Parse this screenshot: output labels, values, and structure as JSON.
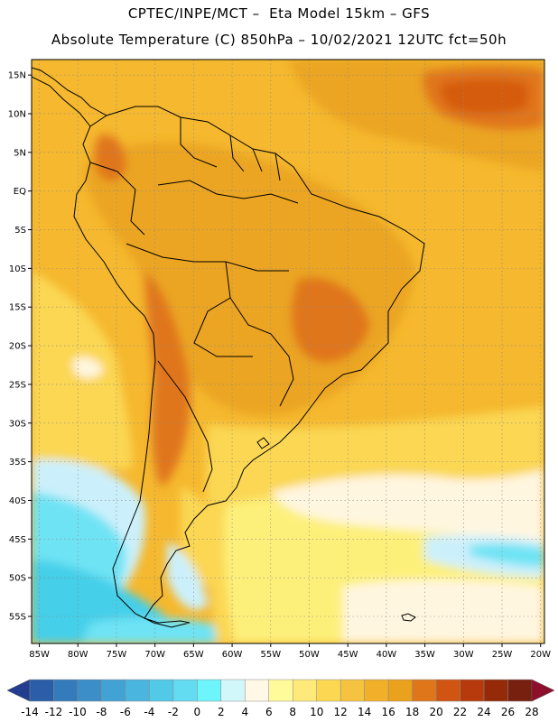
{
  "header": {
    "line1": "CPTEC/INPE/MCT –  Eta Model 15km – GFS",
    "line2": "Absolute Temperature (C) 850hPa – 10/02/2021 12UTC fct=50h"
  },
  "map": {
    "lon_range": [
      -86,
      -19.5
    ],
    "lat_range": [
      -58.5,
      17
    ],
    "lat_ticks": [
      {
        "v": 15,
        "label": "15N"
      },
      {
        "v": 10,
        "label": "10N"
      },
      {
        "v": 5,
        "label": "5N"
      },
      {
        "v": 0,
        "label": "EQ"
      },
      {
        "v": -5,
        "label": "5S"
      },
      {
        "v": -10,
        "label": "10S"
      },
      {
        "v": -15,
        "label": "15S"
      },
      {
        "v": -20,
        "label": "20S"
      },
      {
        "v": -25,
        "label": "25S"
      },
      {
        "v": -30,
        "label": "30S"
      },
      {
        "v": -35,
        "label": "35S"
      },
      {
        "v": -40,
        "label": "40S"
      },
      {
        "v": -45,
        "label": "45S"
      },
      {
        "v": -50,
        "label": "50S"
      },
      {
        "v": -55,
        "label": "55S"
      }
    ],
    "lon_ticks": [
      {
        "v": -85,
        "label": "85W"
      },
      {
        "v": -80,
        "label": "80W"
      },
      {
        "v": -75,
        "label": "75W"
      },
      {
        "v": -70,
        "label": "70W"
      },
      {
        "v": -65,
        "label": "65W"
      },
      {
        "v": -60,
        "label": "60W"
      },
      {
        "v": -55,
        "label": "55W"
      },
      {
        "v": -50,
        "label": "50W"
      },
      {
        "v": -45,
        "label": "45W"
      },
      {
        "v": -40,
        "label": "40W"
      },
      {
        "v": -35,
        "label": "35W"
      },
      {
        "v": -30,
        "label": "30W"
      },
      {
        "v": -25,
        "label": "25W"
      },
      {
        "v": -20,
        "label": "20W"
      }
    ],
    "background_color": "#f5b82e",
    "colors": {
      "warm": "#eba520",
      "hot": "#e0761a",
      "hottest": "#d55c10",
      "cool": "#fbd752",
      "pale": "#fdf07a",
      "cream": "#fff6e0",
      "ice": "#ccf0fb",
      "aqua": "#6ee3f4",
      "cyan": "#45cfe9",
      "coast": "#000000",
      "grid": "#8a8a8a"
    }
  },
  "colorbar": {
    "labels": [
      "-14",
      "-12",
      "-10",
      "-8",
      "-6",
      "-4",
      "-2",
      "0",
      "2",
      "4",
      "6",
      "8",
      "10",
      "12",
      "14",
      "16",
      "18",
      "20",
      "22",
      "24",
      "26",
      "28"
    ],
    "colors": [
      "#233e90",
      "#2b5ea8",
      "#337bbb",
      "#3b8ec8",
      "#42a2d3",
      "#4ab6df",
      "#52c9e7",
      "#63dbf0",
      "#6ef4fb",
      "#d2f7fb",
      "#fff8e6",
      "#fffa9a",
      "#fee97a",
      "#fbd752",
      "#f5c340",
      "#f2b02a",
      "#eaa11e",
      "#e0761a",
      "#d05512",
      "#b73a0c",
      "#952a09",
      "#772010",
      "#8e0f2c"
    ]
  }
}
